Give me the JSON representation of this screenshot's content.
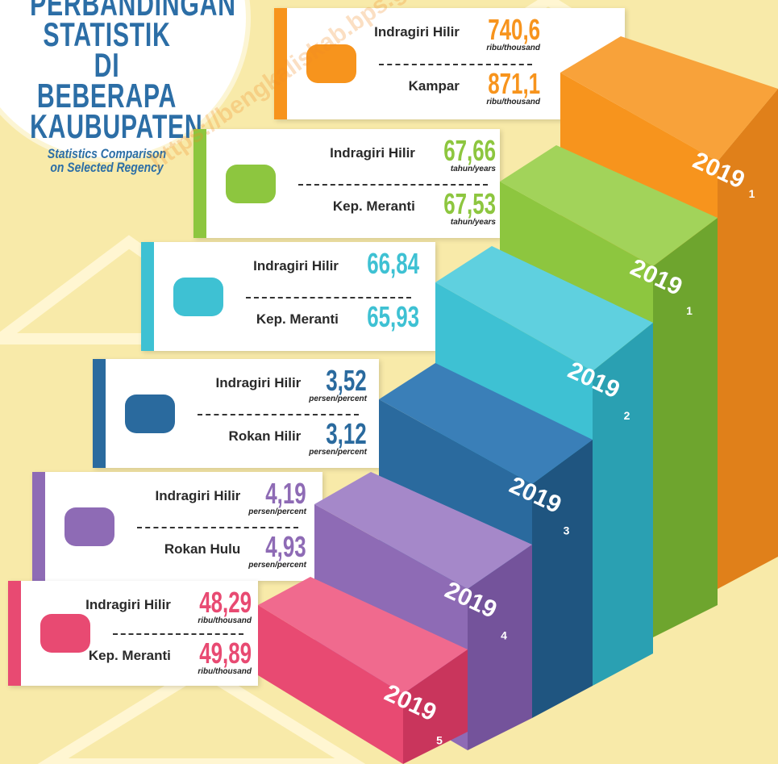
{
  "header": {
    "title_lines": [
      "PERBANDINGAN",
      "STATISTIK",
      "DI BEBERAPA",
      "KAUBUPATEN"
    ],
    "subtitle_lines": [
      "Statistics Comparison",
      "on Selected Regency"
    ]
  },
  "panels": [
    {
      "rows": [
        {
          "region": "Indragiri Hilir",
          "value": "740,6",
          "unit": "ribu/thousand"
        },
        {
          "region": "Kampar",
          "value": "871,1",
          "unit": "ribu/thousand"
        }
      ]
    },
    {
      "rows": [
        {
          "region": "Indragiri Hilir",
          "value": "67,66",
          "unit": "tahun/years"
        },
        {
          "region": "Kep. Meranti",
          "value": "67,53",
          "unit": "tahun/years"
        }
      ]
    },
    {
      "rows": [
        {
          "region": "Indragiri Hilir",
          "value": "66,84"
        },
        {
          "region": "Kep. Meranti",
          "value": "65,93"
        }
      ]
    },
    {
      "rows": [
        {
          "region": "Indragiri Hilir",
          "value": "3,52",
          "unit": "persen/percent"
        },
        {
          "region": "Rokan Hilir",
          "value": "3,12",
          "unit": "persen/percent"
        }
      ]
    },
    {
      "rows": [
        {
          "region": "Indragiri Hilir",
          "value": "4,19",
          "unit": "persen/percent"
        },
        {
          "region": "Rokan Hulu",
          "value": "4,93",
          "unit": "persen/percent"
        }
      ]
    },
    {
      "rows": [
        {
          "region": "Indragiri Hilir",
          "value": "48,29",
          "unit": "ribu/thousand"
        },
        {
          "region": "Kep. Meranti",
          "value": "49,89",
          "unit": "ribu/thousand"
        }
      ]
    }
  ],
  "steps": [
    {
      "year": "2019",
      "rank": "1"
    },
    {
      "year": "2019",
      "rank": "1"
    },
    {
      "year": "2019",
      "rank": "2"
    },
    {
      "year": "2019",
      "rank": "3"
    },
    {
      "year": "2019",
      "rank": "4"
    },
    {
      "year": "2019",
      "rank": "5"
    }
  ],
  "watermark": "https://bengkaliskab.bps.go.id"
}
